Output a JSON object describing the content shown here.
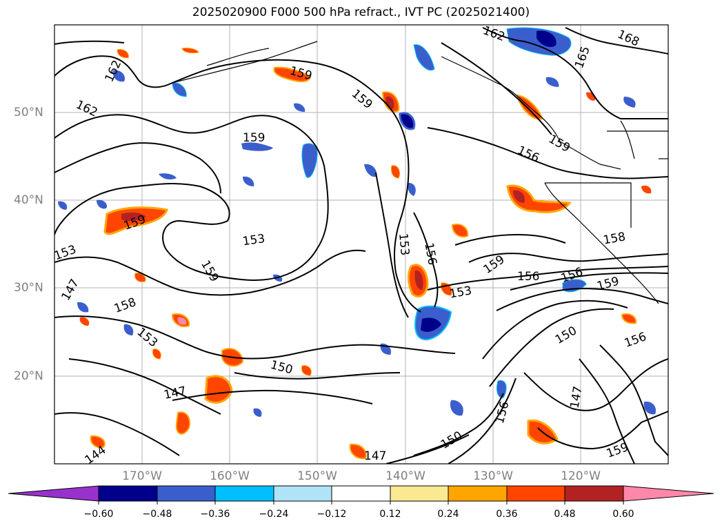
{
  "title": "2025020900 F000 500 hPa refract., IVT PC (2025021400)",
  "map": {
    "lat_labels": [
      "50°N",
      "40°N",
      "30°N",
      "20°N"
    ],
    "lon_labels": [
      "170°W",
      "160°W",
      "150°W",
      "140°W",
      "130°W",
      "120°W"
    ],
    "contour_labels": [
      "162",
      "162",
      "162",
      "159",
      "159",
      "159",
      "168",
      "165",
      "159",
      "159",
      "156",
      "156",
      "153",
      "159",
      "153",
      "156",
      "153",
      "159",
      "156",
      "159",
      "150",
      "158",
      "153",
      "150",
      "147",
      "147",
      "144",
      "147",
      "150",
      "156",
      "159",
      "156",
      "158",
      "153",
      "147"
    ],
    "extent_lon": [
      -180,
      -110
    ],
    "extent_lat": [
      10,
      60
    ]
  },
  "colorbar": {
    "ticks": [
      "−0.60",
      "−0.48",
      "−0.36",
      "−0.24",
      "−0.12",
      "0.12",
      "0.24",
      "0.36",
      "0.48",
      "0.60"
    ],
    "colors": [
      "#9932cc",
      "#00008b",
      "#3a5fcd",
      "#00bfff",
      "#aee3f8",
      "#ffffff",
      "#fbe992",
      "#ffa500",
      "#ff4500",
      "#b22222",
      "#ff88aa"
    ]
  }
}
